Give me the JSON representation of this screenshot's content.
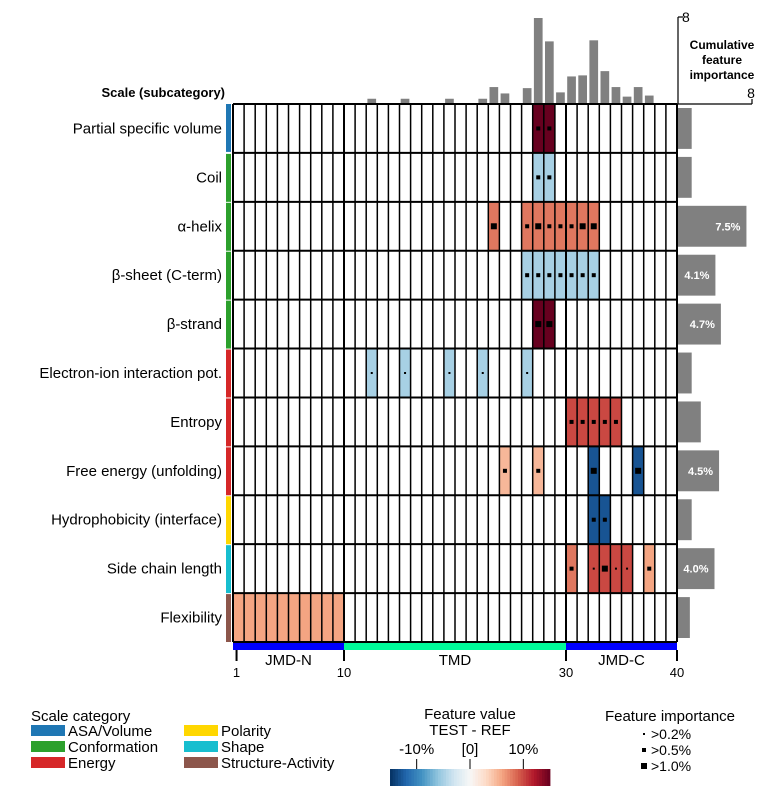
{
  "chart_data": {
    "type": "heatmap",
    "header_label": "Scale (subcategory)",
    "positions": {
      "min": 1,
      "max": 40,
      "tick_labels": [
        "1",
        "10",
        "30",
        "40"
      ],
      "tick_values": [
        1,
        10,
        30,
        40
      ]
    },
    "regions": [
      {
        "name": "JMD-N",
        "start": 1,
        "end": 10,
        "color": "#0000ff"
      },
      {
        "name": "TMD",
        "start": 11,
        "end": 30,
        "color": "#00fa9a"
      },
      {
        "name": "JMD-C",
        "start": 31,
        "end": 40,
        "color": "#0000ff"
      }
    ],
    "scales": [
      {
        "name": "Partial specific volume",
        "category": "ASA/Volume",
        "importance": 1.5,
        "importance_label": ""
      },
      {
        "name": "Coil",
        "category": "Conformation",
        "importance": 1.5,
        "importance_label": ""
      },
      {
        "name": "α-helix",
        "category": "Conformation",
        "importance": 7.5,
        "importance_label": "7.5%"
      },
      {
        "name": "β-sheet (C-term)",
        "category": "Conformation",
        "importance": 4.1,
        "importance_label": "4.1%"
      },
      {
        "name": "β-strand",
        "category": "Conformation",
        "importance": 4.7,
        "importance_label": "4.7%"
      },
      {
        "name": "Electron-ion interaction pot.",
        "category": "Energy",
        "importance": 1.5,
        "importance_label": ""
      },
      {
        "name": "Entropy",
        "category": "Energy",
        "importance": 2.5,
        "importance_label": ""
      },
      {
        "name": "Free energy (unfolding)",
        "category": "Energy",
        "importance": 4.5,
        "importance_label": "4.5%"
      },
      {
        "name": "Hydrophobicity (interface)",
        "category": "Polarity",
        "importance": 1.5,
        "importance_label": ""
      },
      {
        "name": "Side chain length",
        "category": "Shape",
        "importance": 4.0,
        "importance_label": "4.0%"
      },
      {
        "name": "Flexibility",
        "category": "Structure-Activity",
        "importance": 1.3,
        "importance_label": ""
      }
    ],
    "cells": [
      {
        "scale": 0,
        "pos": 28,
        "value": 15,
        "imp": 1
      },
      {
        "scale": 0,
        "pos": 29,
        "value": 15,
        "imp": 1
      },
      {
        "scale": 1,
        "pos": 28,
        "value": -5,
        "imp": 1
      },
      {
        "scale": 1,
        "pos": 29,
        "value": -5,
        "imp": 1
      },
      {
        "scale": 2,
        "pos": 24,
        "value": 8,
        "imp": 2
      },
      {
        "scale": 2,
        "pos": 27,
        "value": 8,
        "imp": 1
      },
      {
        "scale": 2,
        "pos": 28,
        "value": 8,
        "imp": 2
      },
      {
        "scale": 2,
        "pos": 29,
        "value": 8,
        "imp": 1
      },
      {
        "scale": 2,
        "pos": 30,
        "value": 8,
        "imp": 1
      },
      {
        "scale": 2,
        "pos": 31,
        "value": 8,
        "imp": 1
      },
      {
        "scale": 2,
        "pos": 32,
        "value": 8,
        "imp": 2
      },
      {
        "scale": 2,
        "pos": 33,
        "value": 8,
        "imp": 2
      },
      {
        "scale": 3,
        "pos": 27,
        "value": -5,
        "imp": 1
      },
      {
        "scale": 3,
        "pos": 28,
        "value": -5,
        "imp": 1
      },
      {
        "scale": 3,
        "pos": 29,
        "value": -5,
        "imp": 1
      },
      {
        "scale": 3,
        "pos": 30,
        "value": -5,
        "imp": 1
      },
      {
        "scale": 3,
        "pos": 31,
        "value": -5,
        "imp": 1
      },
      {
        "scale": 3,
        "pos": 32,
        "value": -5,
        "imp": 1
      },
      {
        "scale": 3,
        "pos": 33,
        "value": -5,
        "imp": 1
      },
      {
        "scale": 4,
        "pos": 28,
        "value": 15,
        "imp": 2
      },
      {
        "scale": 4,
        "pos": 29,
        "value": 15,
        "imp": 2
      },
      {
        "scale": 5,
        "pos": 13,
        "value": -5,
        "imp": 0
      },
      {
        "scale": 5,
        "pos": 16,
        "value": -5,
        "imp": 0
      },
      {
        "scale": 5,
        "pos": 20,
        "value": -5,
        "imp": 0
      },
      {
        "scale": 5,
        "pos": 23,
        "value": -5,
        "imp": 0
      },
      {
        "scale": 5,
        "pos": 27,
        "value": -5,
        "imp": 0
      },
      {
        "scale": 6,
        "pos": 31,
        "value": 10,
        "imp": 1
      },
      {
        "scale": 6,
        "pos": 32,
        "value": 10,
        "imp": 1
      },
      {
        "scale": 6,
        "pos": 33,
        "value": 10,
        "imp": 1
      },
      {
        "scale": 6,
        "pos": 34,
        "value": 10,
        "imp": 1
      },
      {
        "scale": 6,
        "pos": 35,
        "value": 10,
        "imp": 1
      },
      {
        "scale": 7,
        "pos": 25,
        "value": 5,
        "imp": 1
      },
      {
        "scale": 7,
        "pos": 28,
        "value": 5,
        "imp": 1
      },
      {
        "scale": 7,
        "pos": 33,
        "value": -13,
        "imp": 2
      },
      {
        "scale": 7,
        "pos": 37,
        "value": -13,
        "imp": 2
      },
      {
        "scale": 8,
        "pos": 33,
        "value": -13,
        "imp": 1
      },
      {
        "scale": 8,
        "pos": 34,
        "value": -13,
        "imp": 1
      },
      {
        "scale": 9,
        "pos": 31,
        "value": 8,
        "imp": 1
      },
      {
        "scale": 9,
        "pos": 33,
        "value": 10,
        "imp": 0
      },
      {
        "scale": 9,
        "pos": 34,
        "value": 10,
        "imp": 2
      },
      {
        "scale": 9,
        "pos": 35,
        "value": 10,
        "imp": 0
      },
      {
        "scale": 9,
        "pos": 36,
        "value": 10,
        "imp": 0
      },
      {
        "scale": 9,
        "pos": 38,
        "value": 6,
        "imp": 1
      },
      {
        "scale": 10,
        "pos": 1,
        "value": 6,
        "imp": -1
      },
      {
        "scale": 10,
        "pos": 2,
        "value": 6,
        "imp": -1
      },
      {
        "scale": 10,
        "pos": 3,
        "value": 6,
        "imp": -1
      },
      {
        "scale": 10,
        "pos": 4,
        "value": 6,
        "imp": -1
      },
      {
        "scale": 10,
        "pos": 5,
        "value": 6,
        "imp": -1
      },
      {
        "scale": 10,
        "pos": 6,
        "value": 6,
        "imp": -1
      },
      {
        "scale": 10,
        "pos": 7,
        "value": 6,
        "imp": -1
      },
      {
        "scale": 10,
        "pos": 8,
        "value": 6,
        "imp": -1
      },
      {
        "scale": 10,
        "pos": 9,
        "value": 6,
        "imp": -1
      },
      {
        "scale": 10,
        "pos": 10,
        "value": 6,
        "imp": -1
      }
    ],
    "top_bars": {
      "label": "Cumulative feature importance",
      "max_label": "8",
      "max": 8,
      "values": [
        {
          "pos": 13,
          "value": 0.4
        },
        {
          "pos": 16,
          "value": 0.4
        },
        {
          "pos": 20,
          "value": 0.4
        },
        {
          "pos": 23,
          "value": 0.4
        },
        {
          "pos": 24,
          "value": 1.5
        },
        {
          "pos": 25,
          "value": 0.9
        },
        {
          "pos": 27,
          "value": 1.4
        },
        {
          "pos": 28,
          "value": 8.0
        },
        {
          "pos": 29,
          "value": 5.8
        },
        {
          "pos": 30,
          "value": 1.0
        },
        {
          "pos": 31,
          "value": 2.5
        },
        {
          "pos": 32,
          "value": 2.6
        },
        {
          "pos": 33,
          "value": 5.9
        },
        {
          "pos": 34,
          "value": 3.0
        },
        {
          "pos": 35,
          "value": 1.5
        },
        {
          "pos": 36,
          "value": 0.6
        },
        {
          "pos": 37,
          "value": 1.5
        },
        {
          "pos": 38,
          "value": 0.7
        }
      ]
    },
    "right_axis": {
      "max_label": "8",
      "max": 8
    },
    "categories": [
      {
        "name": "ASA/Volume",
        "color": "#1f77b4"
      },
      {
        "name": "Conformation",
        "color": "#2ca02c"
      },
      {
        "name": "Energy",
        "color": "#d62728"
      },
      {
        "name": "Polarity",
        "color": "#ffd700"
      },
      {
        "name": "Shape",
        "color": "#17becf"
      },
      {
        "name": "Structure-Activity",
        "color": "#8c564b"
      }
    ],
    "legend_category": {
      "title": "Scale category"
    },
    "legend_value": {
      "title": "Feature value",
      "subtitle": "TEST - REF",
      "ticks": [
        "-10%",
        "[0]",
        "10%"
      ],
      "range": [
        -15,
        15
      ]
    },
    "legend_importance": {
      "title": "Feature importance",
      "items": [
        ">0.2%",
        ">0.5%",
        ">1.0%"
      ]
    }
  }
}
